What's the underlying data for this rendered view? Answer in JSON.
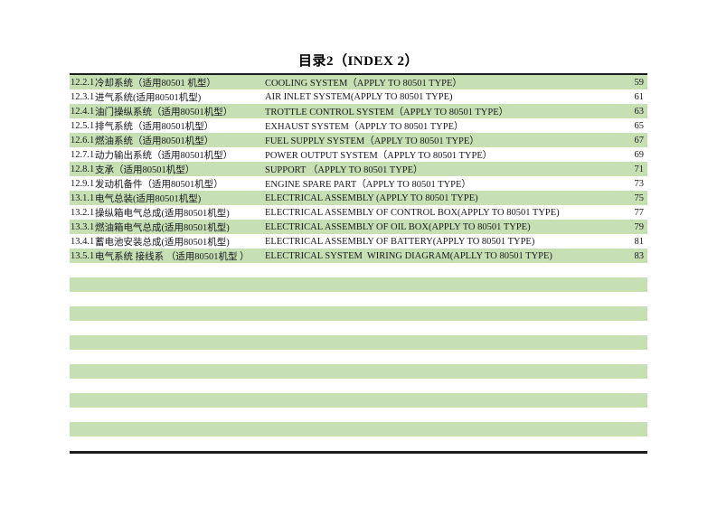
{
  "page": {
    "title": "目录2（INDEX 2）"
  },
  "toc": {
    "colors": {
      "stripe": "#c6e0b4",
      "border": "#1c1c1c",
      "text": "#17171c"
    },
    "empty_rows": 13,
    "rows": [
      {
        "index": "12.2.1",
        "zh": "冷却系统（适用80501 机型）",
        "en": "COOLING SYSTEM（APPLY TO 80501 TYPE）",
        "page": "59"
      },
      {
        "index": "12.3.1",
        "zh": "进气系统(适用80501机型)",
        "en": "AIR INLET SYSTEM(APPLY TO 80501 TYPE)",
        "page": "61"
      },
      {
        "index": "12.4.1",
        "zh": "油门操纵系统（适用80501机型）",
        "en": "TROTTLE CONTROL SYSTEM（APPLY TO 80501 TYPE）",
        "page": "63"
      },
      {
        "index": "12.5.1",
        "zh": "排气系统（适用80501机型）",
        "en": "EXHAUST SYSTEM（APPLY TO 80501 TYPE）",
        "page": "65"
      },
      {
        "index": "12.6.1",
        "zh": "燃油系统（适用80501机型）",
        "en": "FUEL SUPPLY SYSTEM（APPLY TO 80501 TYPE）",
        "page": "67"
      },
      {
        "index": "12.7.1",
        "zh": "动力输出系统（适用80501机型）",
        "en": "POWER OUTPUT SYSTEM（APPLY TO 80501 TYPE）",
        "page": "69"
      },
      {
        "index": "12.8.1",
        "zh": "支承（适用80501机型）",
        "en": "SUPPORT （APPLY TO 80501 TYPE）",
        "page": "71"
      },
      {
        "index": "12.9.1",
        "zh": "发动机备件（适用80501机型）",
        "en": "ENGINE SPARE PART（APPLY TO 80501 TYPE）",
        "page": "73"
      },
      {
        "index": "13.1.1",
        "zh": "电气总装(适用80501机型)",
        "en": "ELECTRICAL ASSEMBLY (APPLY TO 80501 TYPE)",
        "page": "75"
      },
      {
        "index": "13.2.1",
        "zh": "操纵箱电气总成(适用80501机型)",
        "en": "ELECTRICAL ASSEMBLY OF CONTROL BOX(APPLY TO 80501 TYPE)",
        "page": "77"
      },
      {
        "index": "13.3.1",
        "zh": "燃油箱电气总成(适用80501机型)",
        "en": "ELECTRICAL ASSEMBLY OF OIL BOX(APPLY TO 80501 TYPE)",
        "page": "79"
      },
      {
        "index": "13.4.1",
        "zh": "蓄电池安装总成(适用80501机型)",
        "en": "ELECTRICAL ASSEMBLY OF BATTERY(APPLY TO 80501 TYPE)",
        "page": "81"
      },
      {
        "index": "13.5.1",
        "zh": "电气系统 接线系 （适用80501机型 ）",
        "en": "ELECTRICAL SYSTEM  WIRING DIAGRAM(APLLY TO 80501 TYPE)",
        "page": "83"
      }
    ]
  }
}
